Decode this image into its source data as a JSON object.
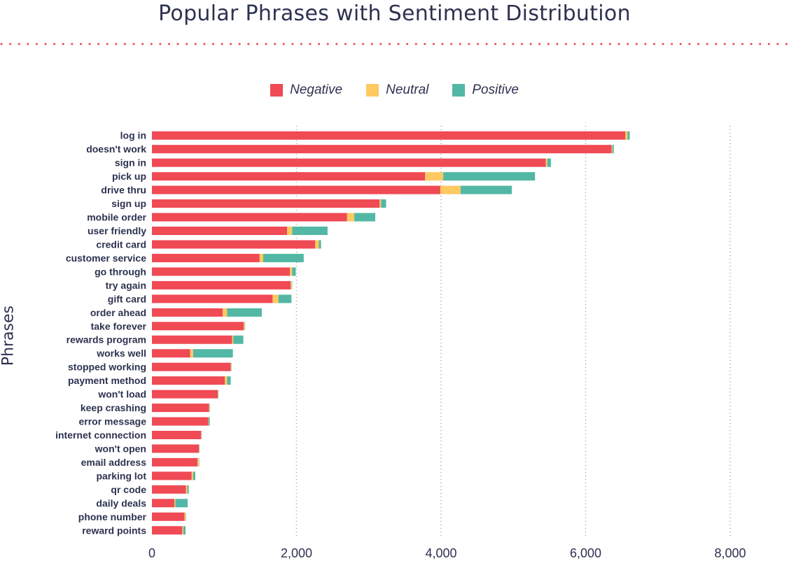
{
  "chart_data": {
    "type": "bar",
    "orientation": "horizontal",
    "stacked": true,
    "title": "Popular Phrases with Sentiment Distribution",
    "xlabel": "",
    "ylabel": "Phrases",
    "xlim": [
      0,
      8000
    ],
    "xticks": [
      0,
      2000,
      4000,
      6000,
      8000
    ],
    "xtick_labels": [
      "0",
      "2,000",
      "4,000",
      "6,000",
      "8,000"
    ],
    "grid": "vertical-dotted",
    "legend_position": "top",
    "categories": [
      "log in",
      "doesn't work",
      "sign in",
      "pick up",
      "drive thru",
      "sign up",
      "mobile order",
      "user friendly",
      "credit card",
      "customer service",
      "go through",
      "try again",
      "gift card",
      "order ahead",
      "take forever",
      "rewards program",
      "works well",
      "stopped working",
      "payment method",
      "won't load",
      "keep crashing",
      "error message",
      "internet connection",
      "won't open",
      "email address",
      "parking lot",
      "qr code",
      "daily deals",
      "phone number",
      "reward points"
    ],
    "series": [
      {
        "name": "Negative",
        "color": "#f04a55",
        "values": [
          6550,
          6360,
          5450,
          3780,
          3990,
          3150,
          2700,
          1870,
          2260,
          1490,
          1910,
          1920,
          1670,
          980,
          1270,
          1110,
          530,
          1090,
          1010,
          910,
          790,
          780,
          680,
          650,
          630,
          550,
          470,
          310,
          450,
          420
        ]
      },
      {
        "name": "Neutral",
        "color": "#fec960",
        "values": [
          30,
          10,
          20,
          250,
          280,
          20,
          100,
          70,
          50,
          50,
          30,
          15,
          80,
          60,
          15,
          15,
          40,
          5,
          30,
          5,
          5,
          5,
          5,
          5,
          20,
          20,
          20,
          15,
          15,
          15
        ]
      },
      {
        "name": "Positive",
        "color": "#52b8a5",
        "values": [
          30,
          20,
          50,
          1270,
          710,
          70,
          290,
          490,
          30,
          560,
          50,
          5,
          180,
          480,
          5,
          140,
          550,
          5,
          50,
          5,
          5,
          15,
          5,
          5,
          5,
          30,
          20,
          170,
          5,
          30
        ]
      }
    ]
  }
}
